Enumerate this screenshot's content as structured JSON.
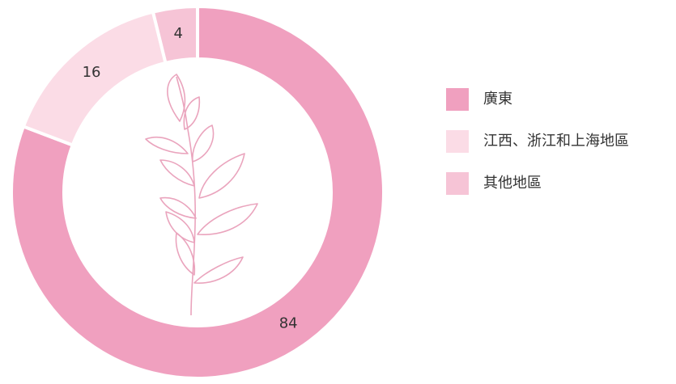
{
  "chart_data": {
    "type": "donut",
    "categories": [
      "廣東",
      "江西、浙江和上海地區",
      "其他地區"
    ],
    "values": [
      84,
      16,
      4
    ],
    "colors": [
      "#f0a0bf",
      "#fbdce6",
      "#f6c4d6"
    ],
    "legend": "right"
  }
}
